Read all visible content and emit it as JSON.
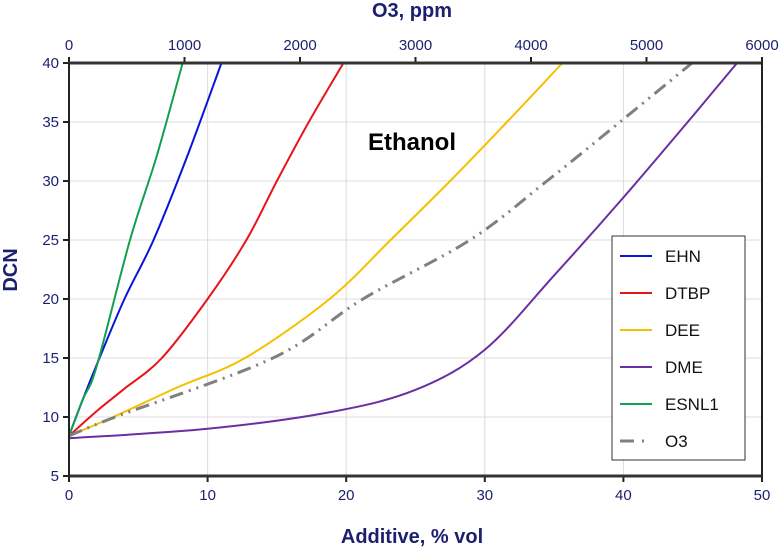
{
  "chart_data": {
    "type": "line",
    "annotation": "Ethanol",
    "xlabel": "Additive, % vol",
    "ylabel": "DCN",
    "x2label": "O3, ppm",
    "xlim": [
      0,
      50
    ],
    "ylim": [
      5,
      40
    ],
    "x2lim": [
      0,
      6000
    ],
    "xticks": [
      "0",
      "10",
      "20",
      "30",
      "40",
      "50"
    ],
    "yticks": [
      "5",
      "10",
      "15",
      "20",
      "25",
      "30",
      "35",
      "40"
    ],
    "x2ticks": [
      "0",
      "1000",
      "2000",
      "3000",
      "4000",
      "5000",
      "6000"
    ],
    "grid": true,
    "legend_position": "right",
    "series": [
      {
        "name": "EHN",
        "color": "#0a14d8",
        "style": "solid",
        "axis": "bottom",
        "points": [
          [
            0,
            8.4
          ],
          [
            1,
            11.5
          ],
          [
            2.2,
            15
          ],
          [
            4,
            20
          ],
          [
            6.1,
            25
          ],
          [
            8.5,
            32
          ],
          [
            11,
            40
          ]
        ]
      },
      {
        "name": "DTBP",
        "color": "#e8141a",
        "style": "solid",
        "axis": "bottom",
        "points": [
          [
            0,
            8.4
          ],
          [
            2,
            10.5
          ],
          [
            4,
            12.4
          ],
          [
            6.7,
            15
          ],
          [
            10,
            20
          ],
          [
            12.8,
            25
          ],
          [
            15,
            30
          ],
          [
            17.3,
            35
          ],
          [
            19.8,
            40
          ]
        ]
      },
      {
        "name": "DEE",
        "color": "#f5c000",
        "style": "solid",
        "axis": "bottom",
        "points": [
          [
            0,
            8.4
          ],
          [
            3.2,
            10
          ],
          [
            7.8,
            12.5
          ],
          [
            12.7,
            15
          ],
          [
            18.8,
            20
          ],
          [
            23.2,
            25
          ],
          [
            27.5,
            30
          ],
          [
            31.6,
            35
          ],
          [
            35.6,
            40
          ]
        ]
      },
      {
        "name": "DME",
        "color": "#6a2fa0",
        "style": "solid",
        "axis": "bottom",
        "points": [
          [
            0,
            8.2
          ],
          [
            10,
            9.0
          ],
          [
            18.8,
            10.4
          ],
          [
            25,
            12.3
          ],
          [
            30,
            15.7
          ],
          [
            35,
            22
          ],
          [
            40,
            28.6
          ],
          [
            45,
            35.5
          ],
          [
            48.2,
            40
          ]
        ]
      },
      {
        "name": "ESNL1",
        "color": "#12a050",
        "style": "solid",
        "axis": "bottom",
        "points": [
          [
            0,
            8.4
          ],
          [
            1,
            11.5
          ],
          [
            2,
            14.3
          ],
          [
            4.4,
            25
          ],
          [
            6.3,
            32
          ],
          [
            8.2,
            40
          ]
        ]
      },
      {
        "name": "O3",
        "color": "#808080",
        "style": "dash-dot-dot",
        "axis": "top",
        "points": [
          [
            0,
            8.4
          ],
          [
            400,
            10
          ],
          [
            1766,
            15
          ],
          [
            2545,
            20
          ],
          [
            3472,
            25
          ],
          [
            4138,
            30
          ],
          [
            4770,
            35
          ],
          [
            5394,
            40
          ]
        ]
      }
    ],
    "colors": {
      "axis_text": "#1b1f6e",
      "grid": "#dcdcdc",
      "frame": "#333333"
    }
  }
}
